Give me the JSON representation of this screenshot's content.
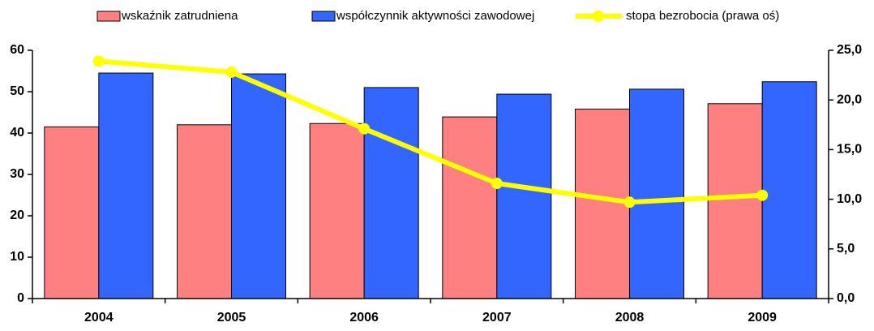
{
  "chart_data": {
    "type": "bar",
    "categories": [
      "2004",
      "2005",
      "2006",
      "2007",
      "2008",
      "2009"
    ],
    "series": [
      {
        "name": "wskaźnik zatrudniena",
        "color": "#ff8080",
        "values": [
          41.5,
          42.0,
          42.3,
          43.9,
          45.8,
          47.1
        ]
      },
      {
        "name": "współczynnik aktywności zawodowej",
        "color": "#3366ff",
        "values": [
          54.5,
          54.3,
          51.0,
          49.4,
          50.6,
          52.4
        ]
      },
      {
        "name": "stopa bezrobocia (prawa oś)",
        "color": "#ffff00",
        "type": "line",
        "axis": "y2",
        "values": [
          23.9,
          22.8,
          17.1,
          11.6,
          9.7,
          10.4
        ]
      }
    ],
    "ylim": [
      0,
      60
    ],
    "yticks": [
      0,
      10,
      20,
      30,
      40,
      50,
      60
    ],
    "y2lim": [
      0,
      25
    ],
    "y2ticks": [
      {
        "value": 0,
        "label": "0,0"
      },
      {
        "value": 5,
        "label": "5,0"
      },
      {
        "value": 10,
        "label": "10,0"
      },
      {
        "value": 15,
        "label": "15,0"
      },
      {
        "value": 20,
        "label": "20,0"
      },
      {
        "value": 25,
        "label": "25,0"
      }
    ],
    "legend": "top",
    "grid": false
  }
}
